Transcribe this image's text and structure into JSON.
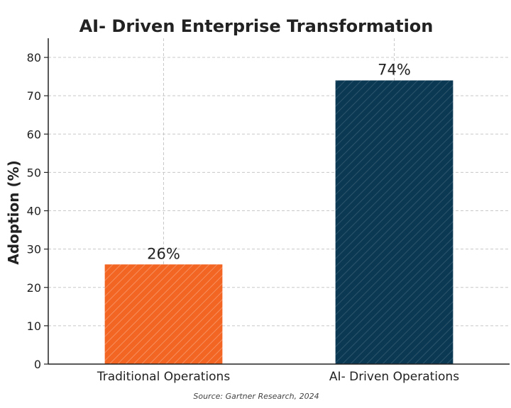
{
  "chart_data": {
    "type": "bar",
    "title": "AI- Driven Enterprise Transformation",
    "xlabel": "",
    "ylabel": "Adoption (%)",
    "categories": [
      "Traditional Operations",
      "AI- Driven Operations"
    ],
    "values": [
      26,
      74
    ],
    "data_labels": [
      "26%",
      "74%"
    ],
    "colors": [
      "#f26522",
      "#0b3954"
    ],
    "hatch": "diagonal",
    "ylim": [
      0,
      85
    ],
    "yticks": [
      0,
      10,
      20,
      30,
      40,
      50,
      60,
      70,
      80
    ],
    "grid": true,
    "legend": "none",
    "source": "Source: Gartner Research, 2024"
  }
}
